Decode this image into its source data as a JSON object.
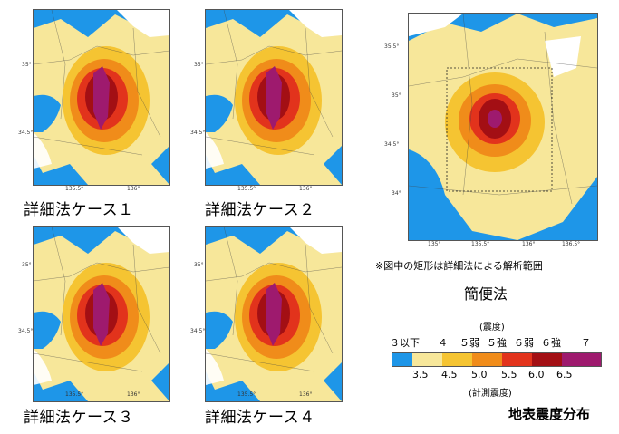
{
  "panels": [
    {
      "id": "case1",
      "label": "詳細法ケース１"
    },
    {
      "id": "case2",
      "label": "詳細法ケース２"
    },
    {
      "id": "case3",
      "label": "詳細法ケース３"
    },
    {
      "id": "case4",
      "label": "詳細法ケース４"
    }
  ],
  "detail_axis": {
    "y_ticks": [
      "35°",
      "34.5°"
    ],
    "x_ticks": [
      "135.5°",
      "136°"
    ]
  },
  "simple_panel": {
    "label": "簡便法",
    "note": "※図中の矩形は詳細法による解析範囲",
    "y_ticks": [
      "35.5°",
      "35°",
      "34.5°",
      "34°"
    ],
    "x_ticks": [
      "135°",
      "135.5°",
      "136°",
      "136.5°"
    ]
  },
  "legend": {
    "title_top": "(震度)",
    "classes": [
      "３以下",
      "４",
      "５弱",
      "５強",
      "６弱",
      "６強",
      "７"
    ],
    "values": [
      "3.5",
      "4.5",
      "5.0",
      "5.5",
      "6.0",
      "6.5"
    ],
    "title_bottom": "(計測震度)",
    "colors": [
      "#1e96e8",
      "#f7e79a",
      "#f5c432",
      "#f08c1a",
      "#e2331c",
      "#a30f14",
      "#9e1a6e"
    ]
  },
  "footer": {
    "title": "地表震度分布"
  }
}
